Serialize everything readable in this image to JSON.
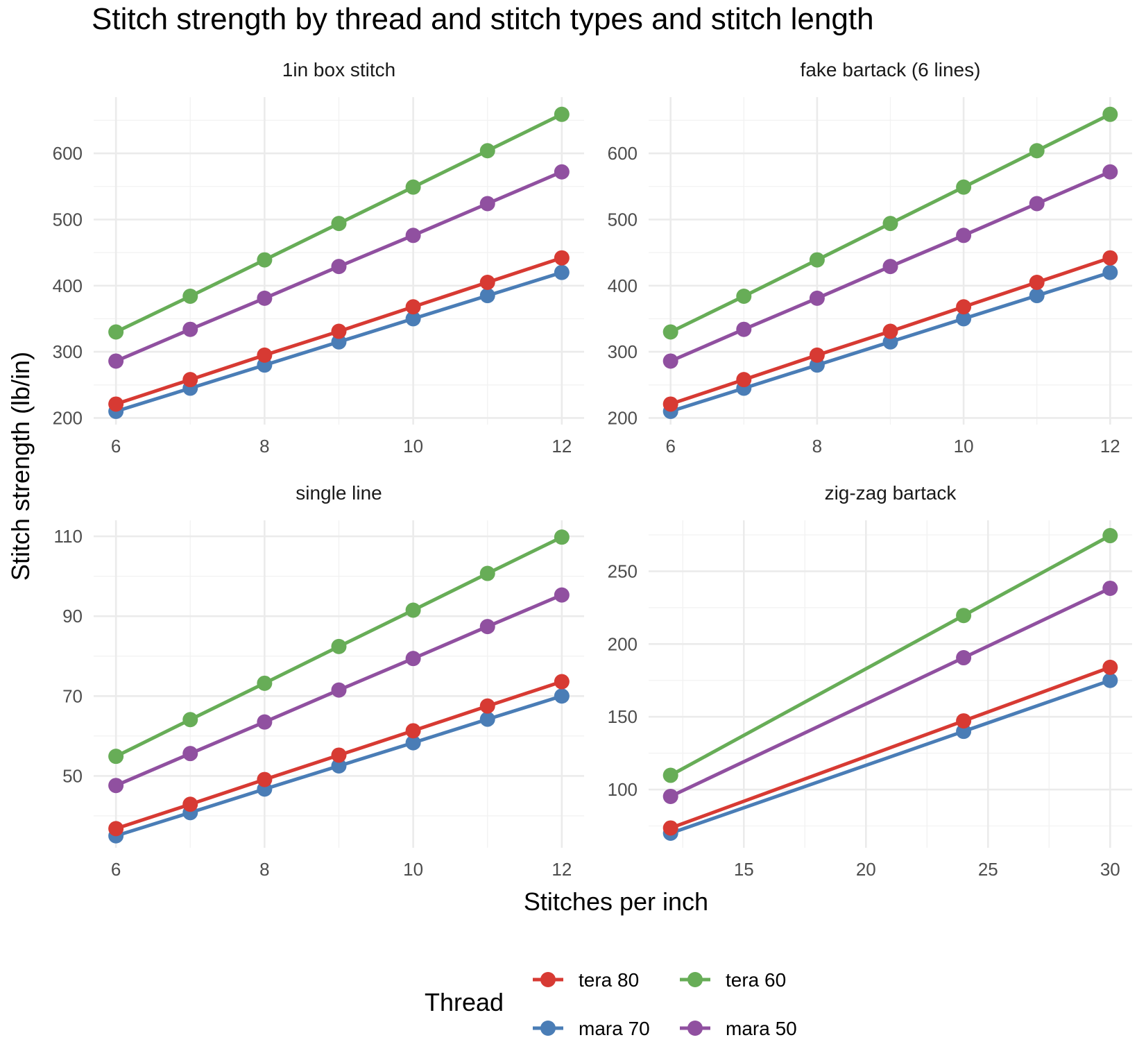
{
  "chart_data": {
    "type": "line",
    "title": "Stitch strength by thread and stitch types and stitch length",
    "xlabel": "Stitches per inch",
    "ylabel": "Stitch strength (lb/in)",
    "legend": {
      "title": "Thread",
      "position": "bottom",
      "entries": [
        "tera 80",
        "tera 60",
        "mara 70",
        "mara 50"
      ]
    },
    "grid": true,
    "colors": {
      "tera 80": "#d73a33",
      "mara 70": "#4a7db6",
      "tera 60": "#67ad57",
      "mara 50": "#9050a0"
    },
    "facets": [
      {
        "title": "1in box stitch",
        "x": [
          6,
          7,
          8,
          9,
          10,
          11,
          12
        ],
        "xlim": [
          5.7,
          12.3
        ],
        "ylim": [
          190,
          685
        ],
        "xticks": [
          6,
          8,
          10,
          12
        ],
        "yticks": [
          200,
          300,
          400,
          500,
          600
        ],
        "series": [
          {
            "name": "tera 80",
            "values": [
              221,
              258,
              295,
              331,
              368,
              405,
              442
            ]
          },
          {
            "name": "mara 70",
            "values": [
              210,
              245,
              280,
              315,
              350,
              385,
              420
            ]
          },
          {
            "name": "tera 60",
            "values": [
              330,
              384,
              439,
              494,
              549,
              604,
              659
            ]
          },
          {
            "name": "mara 50",
            "values": [
              286,
              334,
              381,
              429,
              476,
              524,
              572
            ]
          }
        ]
      },
      {
        "title": "fake bartack (6 lines)",
        "x": [
          6,
          7,
          8,
          9,
          10,
          11,
          12
        ],
        "xlim": [
          5.7,
          12.3
        ],
        "ylim": [
          190,
          685
        ],
        "xticks": [
          6,
          8,
          10,
          12
        ],
        "yticks": [
          200,
          300,
          400,
          500,
          600
        ],
        "series": [
          {
            "name": "tera 80",
            "values": [
              221,
              258,
              295,
              331,
              368,
              405,
              442
            ]
          },
          {
            "name": "mara 70",
            "values": [
              210,
              245,
              280,
              315,
              350,
              385,
              420
            ]
          },
          {
            "name": "tera 60",
            "values": [
              330,
              384,
              439,
              494,
              549,
              604,
              659
            ]
          },
          {
            "name": "mara 50",
            "values": [
              286,
              334,
              381,
              429,
              476,
              524,
              572
            ]
          }
        ]
      },
      {
        "title": "single line",
        "x": [
          6,
          7,
          8,
          9,
          10,
          11,
          12
        ],
        "xlim": [
          5.7,
          12.3
        ],
        "ylim": [
          32,
          114
        ],
        "xticks": [
          6,
          8,
          10,
          12
        ],
        "yticks": [
          50,
          70,
          90,
          110
        ],
        "series": [
          {
            "name": "tera 80",
            "values": [
              36.8,
              42.9,
              49.1,
              55.2,
              61.3,
              67.5,
              73.6
            ]
          },
          {
            "name": "mara 70",
            "values": [
              35.0,
              40.8,
              46.7,
              52.5,
              58.3,
              64.2,
              70.0
            ]
          },
          {
            "name": "tera 60",
            "values": [
              54.9,
              64.1,
              73.2,
              82.4,
              91.5,
              100.7,
              109.8
            ]
          },
          {
            "name": "mara 50",
            "values": [
              47.6,
              55.6,
              63.5,
              71.5,
              79.4,
              87.4,
              95.3
            ]
          }
        ]
      },
      {
        "title": "zig-zag bartack",
        "x": [
          12,
          24,
          30
        ],
        "xlim": [
          11.1,
          30.9
        ],
        "ylim": [
          60,
          285
        ],
        "xticks": [
          15,
          20,
          25,
          30
        ],
        "yticks": [
          100,
          150,
          200,
          250
        ],
        "series": [
          {
            "name": "tera 80",
            "values": [
              73.6,
              147.2,
              184.0
            ]
          },
          {
            "name": "mara 70",
            "values": [
              70.0,
              140.0,
              175.0
            ]
          },
          {
            "name": "tera 60",
            "values": [
              109.8,
              219.6,
              274.5
            ]
          },
          {
            "name": "mara 50",
            "values": [
              95.3,
              190.6,
              238.3
            ]
          }
        ]
      }
    ]
  }
}
